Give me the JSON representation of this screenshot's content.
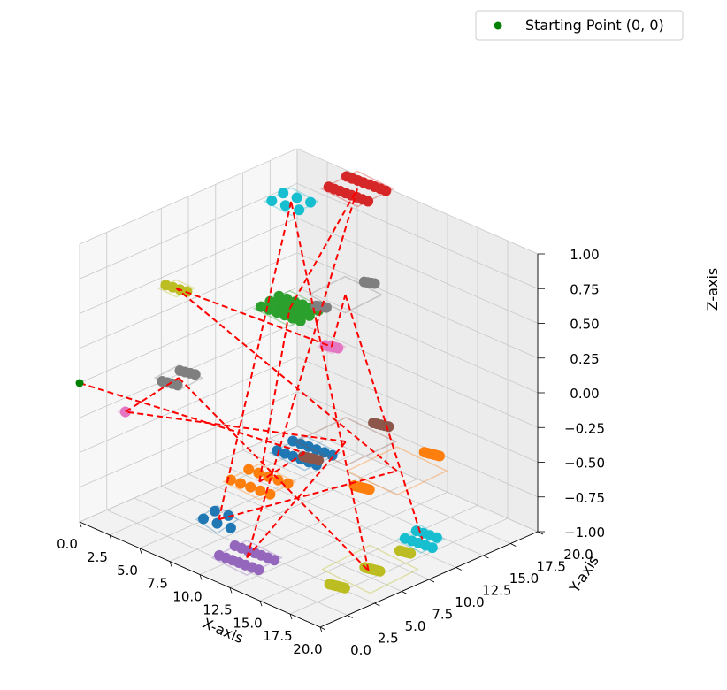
{
  "chart_data": {
    "type": "scatter",
    "projection": "3d",
    "xlabel": "X-axis",
    "ylabel": "Y-axis",
    "zlabel": "Z-axis",
    "xlim": [
      0,
      20
    ],
    "ylim": [
      0,
      20
    ],
    "zlim": [
      -1,
      1
    ],
    "x_ticks": [
      "0.0",
      "2.5",
      "5.0",
      "7.5",
      "10.0",
      "12.5",
      "15.0",
      "17.5",
      "20.0"
    ],
    "y_ticks": [
      "0.0",
      "2.5",
      "5.0",
      "7.5",
      "10.0",
      "12.5",
      "15.0",
      "17.5",
      "20.0"
    ],
    "z_ticks": [
      "−1.00",
      "−0.75",
      "−0.50",
      "−0.25",
      "0.00",
      "0.25",
      "0.50",
      "0.75",
      "1.00"
    ],
    "grid": true,
    "legend": {
      "position": "top-right",
      "entries": [
        {
          "label": "Starting Point (0, 0)",
          "color": "#008000"
        }
      ]
    },
    "start_point": {
      "x": 0,
      "y": 0,
      "z": 0,
      "color": "#008000"
    },
    "path_color": "#ff0000",
    "path_style": "dashed",
    "groups": [
      {
        "color": "#1f77b4",
        "center": [
          16,
          3,
          0
        ],
        "spread": [
          3,
          0.5
        ],
        "count": 12,
        "rows": 2
      },
      {
        "color": "#ff7f0e",
        "center": [
          5,
          11,
          -0.9
        ],
        "spread": [
          3,
          0.6
        ],
        "count": 10,
        "rows": 2
      },
      {
        "color": "#2ca02c",
        "center": [
          3,
          16,
          0.1
        ],
        "spread": [
          3,
          0.6
        ],
        "count": 18,
        "rows": 3
      },
      {
        "color": "#d62728",
        "center": [
          5,
          20,
          0.9
        ],
        "spread": [
          3,
          0.6
        ],
        "count": 16,
        "rows": 2
      },
      {
        "color": "#9467bd",
        "center": [
          13,
          1,
          -0.8
        ],
        "spread": [
          3,
          0.5
        ],
        "count": 14,
        "rows": 2
      },
      {
        "color": "#8c564b",
        "center": [
          14,
          9,
          -0.2
        ],
        "spread": [
          1,
          3
        ],
        "count": 10,
        "rows": 2
      },
      {
        "color": "#e377c2",
        "center": [
          2,
          2,
          -0.2
        ],
        "spread": [
          0.3,
          0.3
        ],
        "count": 1,
        "rows": 1
      },
      {
        "color": "#7f7f7f",
        "center": [
          1,
          8,
          -0.2
        ],
        "spread": [
          1,
          0.6
        ],
        "count": 8,
        "rows": 2
      },
      {
        "color": "#bcbd22",
        "center": [
          18,
          7,
          -0.9
        ],
        "spread": [
          1,
          3
        ],
        "count": 22,
        "rows": 3
      },
      {
        "color": "#17becf",
        "center": [
          -0.5,
          20,
          0.6
        ],
        "spread": [
          2,
          0.3
        ],
        "count": 6,
        "rows": 2
      },
      {
        "color": "#1f77b4",
        "center": [
          11,
          1,
          -0.6
        ],
        "spread": [
          2,
          0.3
        ],
        "count": 5,
        "rows": 2
      },
      {
        "color": "#ff7f0e",
        "center": [
          11,
          17,
          -0.8
        ],
        "spread": [
          1,
          3
        ],
        "count": 14,
        "rows": 2
      },
      {
        "color": "#bcbd22",
        "center": [
          -1,
          10,
          0.3
        ],
        "spread": [
          1.5,
          0.3
        ],
        "count": 4,
        "rows": 1
      },
      {
        "color": "#e377c2",
        "center": [
          11,
          11,
          0.3
        ],
        "spread": [
          0.8,
          0.6
        ],
        "count": 5,
        "rows": 1
      },
      {
        "color": "#7f7f7f",
        "center": [
          4,
          20,
          0.1
        ],
        "spread": [
          0.6,
          2
        ],
        "count": 8,
        "rows": 2
      },
      {
        "color": "#17becf",
        "center": [
          16,
          14,
          -1.0
        ],
        "spread": [
          2,
          0.3
        ],
        "count": 9,
        "rows": 2
      }
    ]
  }
}
